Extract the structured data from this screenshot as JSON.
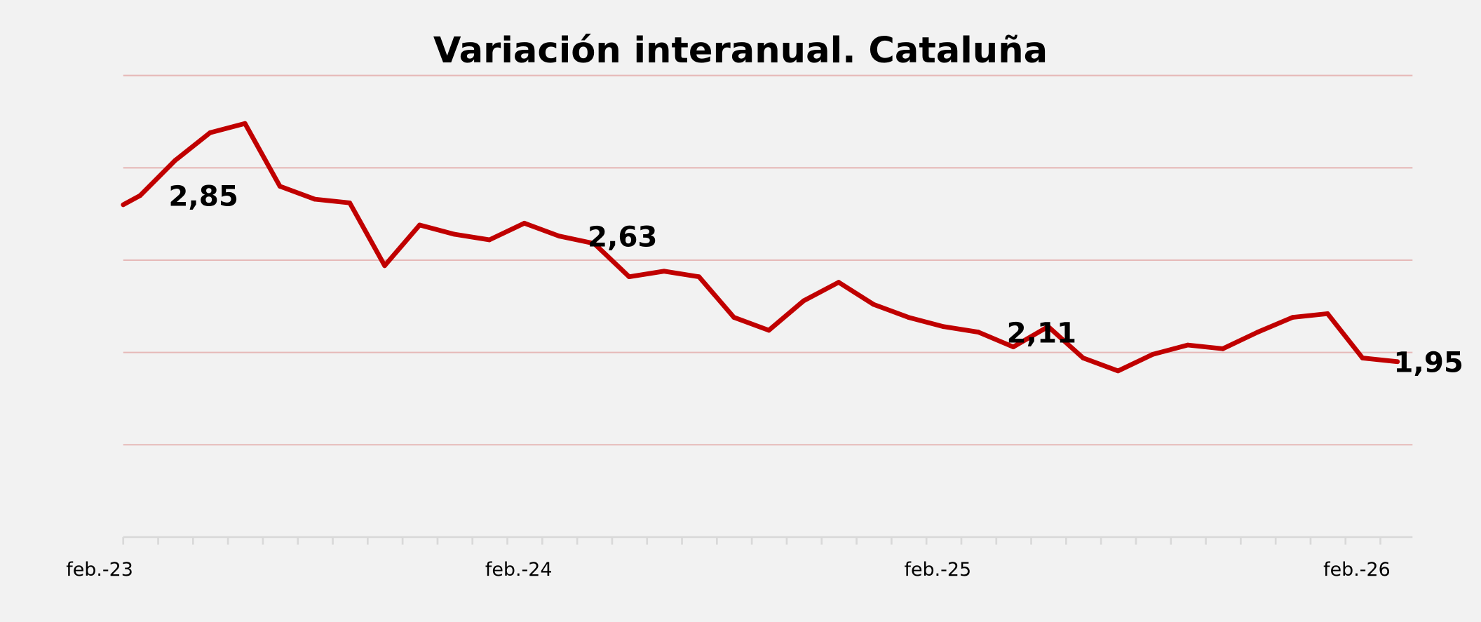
{
  "chart_data": {
    "type": "line",
    "title": "Variación interanual. Cataluña",
    "xlabel": "",
    "ylabel": "",
    "ylim": [
      1.0,
      3.5
    ],
    "yticks": [
      1.0,
      1.5,
      2.0,
      2.5,
      3.0,
      3.5
    ],
    "ytick_labels_visible": false,
    "grid": true,
    "legend": "none",
    "x_tick_labels": [
      {
        "index": 0,
        "label": "feb.-23"
      },
      {
        "index": 12,
        "label": "feb.-24"
      },
      {
        "index": 24,
        "label": "feb.-25"
      },
      {
        "index": 36,
        "label": "feb.-26"
      }
    ],
    "leading_clipped_value": 2.75,
    "series": [
      {
        "name": "Variación interanual",
        "color": "#c00000",
        "values": [
          2.85,
          3.04,
          3.19,
          3.24,
          2.9,
          2.83,
          2.81,
          2.47,
          2.69,
          2.64,
          2.61,
          2.7,
          2.63,
          2.59,
          2.41,
          2.44,
          2.41,
          2.19,
          2.12,
          2.28,
          2.38,
          2.26,
          2.19,
          2.14,
          2.11,
          2.03,
          2.14,
          1.97,
          1.9,
          1.99,
          2.04,
          2.02,
          2.11,
          2.19,
          2.21,
          1.97,
          1.95
        ]
      }
    ],
    "data_labels": [
      {
        "index": 0,
        "text": "2,85"
      },
      {
        "index": 12,
        "text": "2,63"
      },
      {
        "index": 24,
        "text": "2,11"
      },
      {
        "index": 36,
        "text": "1,95"
      }
    ],
    "colors": {
      "background": "#f2f2f2",
      "grid": "#e6b9b8",
      "axis": "#d9d9d9"
    }
  }
}
